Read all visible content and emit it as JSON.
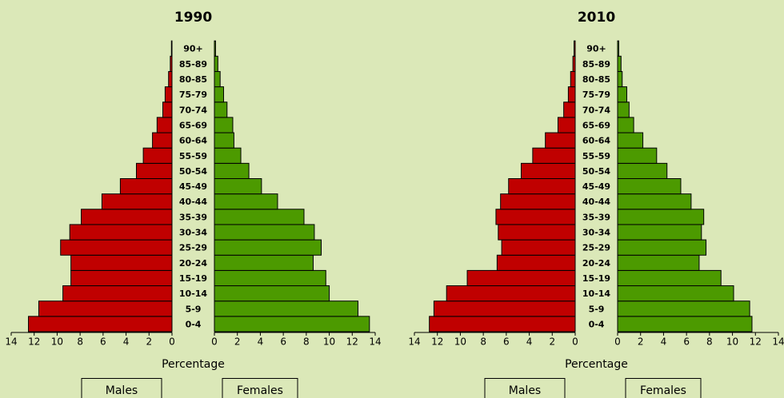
{
  "chart_data": [
    {
      "type": "pyramid",
      "title": "1990",
      "xlabel": "Percentage",
      "categories": [
        "0-4",
        "5-9",
        "10-14",
        "15-19",
        "20-24",
        "25-29",
        "30-34",
        "35-39",
        "40-44",
        "45-49",
        "50-54",
        "55-59",
        "60-64",
        "65-69",
        "70-74",
        "75-79",
        "80-85",
        "85-89",
        "90+"
      ],
      "series": [
        {
          "name": "Males",
          "color": "#c00000",
          "values": [
            12.5,
            11.6,
            9.5,
            8.8,
            8.8,
            9.7,
            8.9,
            7.9,
            6.1,
            4.5,
            3.1,
            2.5,
            1.7,
            1.3,
            0.8,
            0.6,
            0.3,
            0.15,
            0.05
          ]
        },
        {
          "name": "Females",
          "color": "#4c9a00",
          "values": [
            13.5,
            12.5,
            10.0,
            9.7,
            8.6,
            9.3,
            8.7,
            7.8,
            5.5,
            4.1,
            3.0,
            2.3,
            1.7,
            1.6,
            1.1,
            0.8,
            0.5,
            0.3,
            0.1
          ]
        }
      ],
      "xlim": [
        0,
        14
      ],
      "xticks": [
        0,
        2,
        4,
        6,
        8,
        10,
        12,
        14
      ]
    },
    {
      "type": "pyramid",
      "title": "2010",
      "xlabel": "Percentage",
      "categories": [
        "0-4",
        "5-9",
        "10-14",
        "15-19",
        "20-24",
        "25-29",
        "30-34",
        "35-39",
        "40-44",
        "45-49",
        "50-54",
        "55-59",
        "60-64",
        "65-69",
        "70-74",
        "75-79",
        "80-85",
        "85-89",
        "90+"
      ],
      "series": [
        {
          "name": "Males",
          "color": "#c00000",
          "values": [
            12.7,
            12.3,
            11.2,
            9.4,
            6.8,
            6.4,
            6.7,
            6.9,
            6.5,
            5.8,
            4.7,
            3.7,
            2.6,
            1.5,
            1.0,
            0.6,
            0.4,
            0.2,
            0.1
          ]
        },
        {
          "name": "Females",
          "color": "#4c9a00",
          "values": [
            11.7,
            11.5,
            10.1,
            9.0,
            7.1,
            7.7,
            7.3,
            7.5,
            6.4,
            5.5,
            4.3,
            3.4,
            2.2,
            1.4,
            1.0,
            0.8,
            0.4,
            0.3,
            0.1
          ]
        }
      ],
      "xlim": [
        0,
        14
      ],
      "xticks": [
        0,
        2,
        4,
        6,
        8,
        10,
        12,
        14
      ]
    }
  ]
}
